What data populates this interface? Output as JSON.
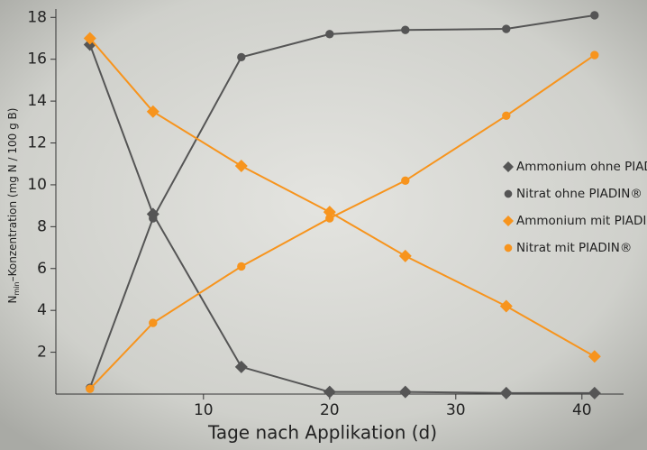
{
  "chart_data": {
    "type": "line",
    "x_label": "Tage nach Applikation (d)",
    "y_label": {
      "main": "N",
      "sub": "min",
      "rest": "–Konzentration (mg N / 100 g B)"
    },
    "x": [
      1,
      6,
      13,
      20,
      26,
      34,
      41
    ],
    "series": [
      {
        "name": "Ammonium ohne PIADIN®",
        "color": "#555555",
        "marker": "diamond",
        "values": [
          16.7,
          8.6,
          1.3,
          0.1,
          0.1,
          0.05,
          0.05
        ]
      },
      {
        "name": "Nitrat ohne PIADIN®",
        "color": "#555555",
        "marker": "circle",
        "values": [
          0.3,
          8.4,
          16.1,
          17.2,
          17.4,
          17.45,
          18.1
        ]
      },
      {
        "name": "Ammonium mit PIADIN®",
        "color": "#f7941d",
        "marker": "diamond",
        "values": [
          17.0,
          13.5,
          10.9,
          8.7,
          6.6,
          4.2,
          1.8
        ]
      },
      {
        "name": "Nitrat mit PIADIN®",
        "color": "#f7941d",
        "marker": "circle",
        "values": [
          0.25,
          3.4,
          6.1,
          8.4,
          10.2,
          13.3,
          16.2
        ]
      }
    ],
    "xlim": [
      -1.7,
      43.3
    ],
    "ylim": [
      0,
      18.4
    ],
    "xticks": [
      10,
      20,
      30,
      40
    ],
    "yticks": [
      2,
      4,
      6,
      8,
      10,
      12,
      14,
      16,
      18
    ],
    "legend": "right"
  }
}
